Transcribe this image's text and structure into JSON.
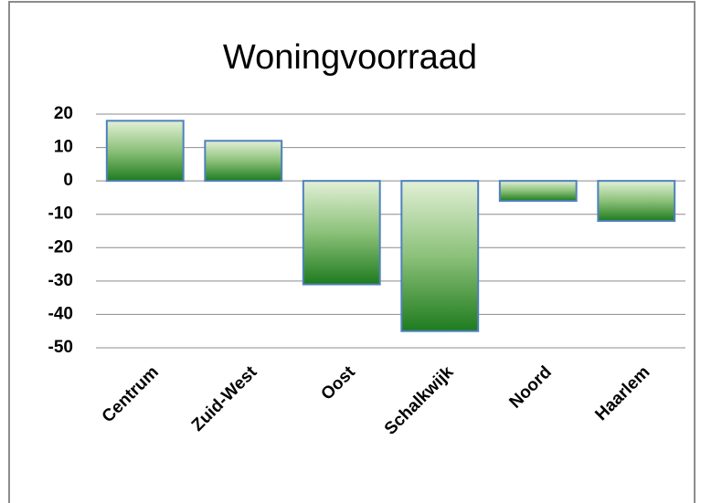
{
  "chart_data": {
    "type": "bar",
    "title": "Woningvoorraad",
    "categories": [
      "Centrum",
      "Zuid-West",
      "Oost",
      "Schalkwijk",
      "Noord",
      "Haarlem"
    ],
    "values": [
      18,
      12,
      -31,
      -45,
      -6,
      -12
    ],
    "color": "#1e7b1e",
    "edgecolor": "#4f81bd",
    "ylim": [
      -50,
      20
    ],
    "yticks": [
      20,
      10,
      0,
      -10,
      -20,
      -30,
      -40,
      -50
    ],
    "grid": true
  }
}
